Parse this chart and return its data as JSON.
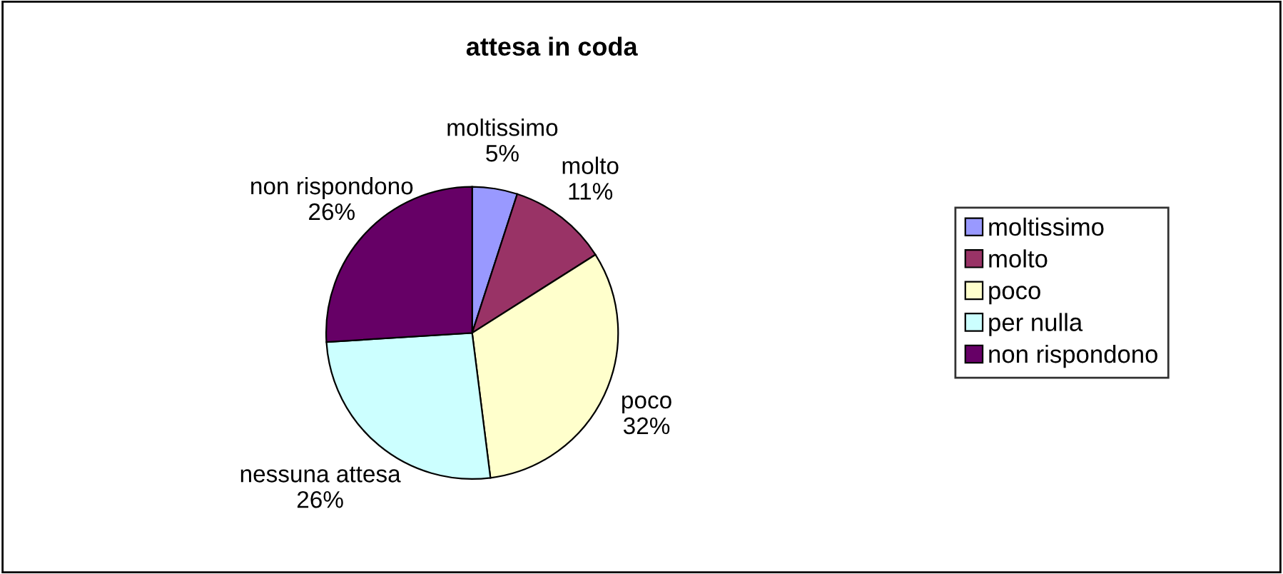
{
  "chart_data": {
    "type": "pie",
    "title": "attesa in coda",
    "categories": [
      "moltissimo",
      "molto",
      "poco",
      "per nulla",
      "non rispondono"
    ],
    "values": [
      5,
      11,
      32,
      26,
      26
    ],
    "colors": [
      "#9999ff",
      "#993366",
      "#ffffcc",
      "#ccffff",
      "#660066"
    ],
    "value_labels": [
      "moltissimo\n5%",
      "molto\n11%",
      "poco\n32%",
      "nessuna attesa\n26%",
      "non rispondono\n26%"
    ],
    "legend": "right"
  }
}
